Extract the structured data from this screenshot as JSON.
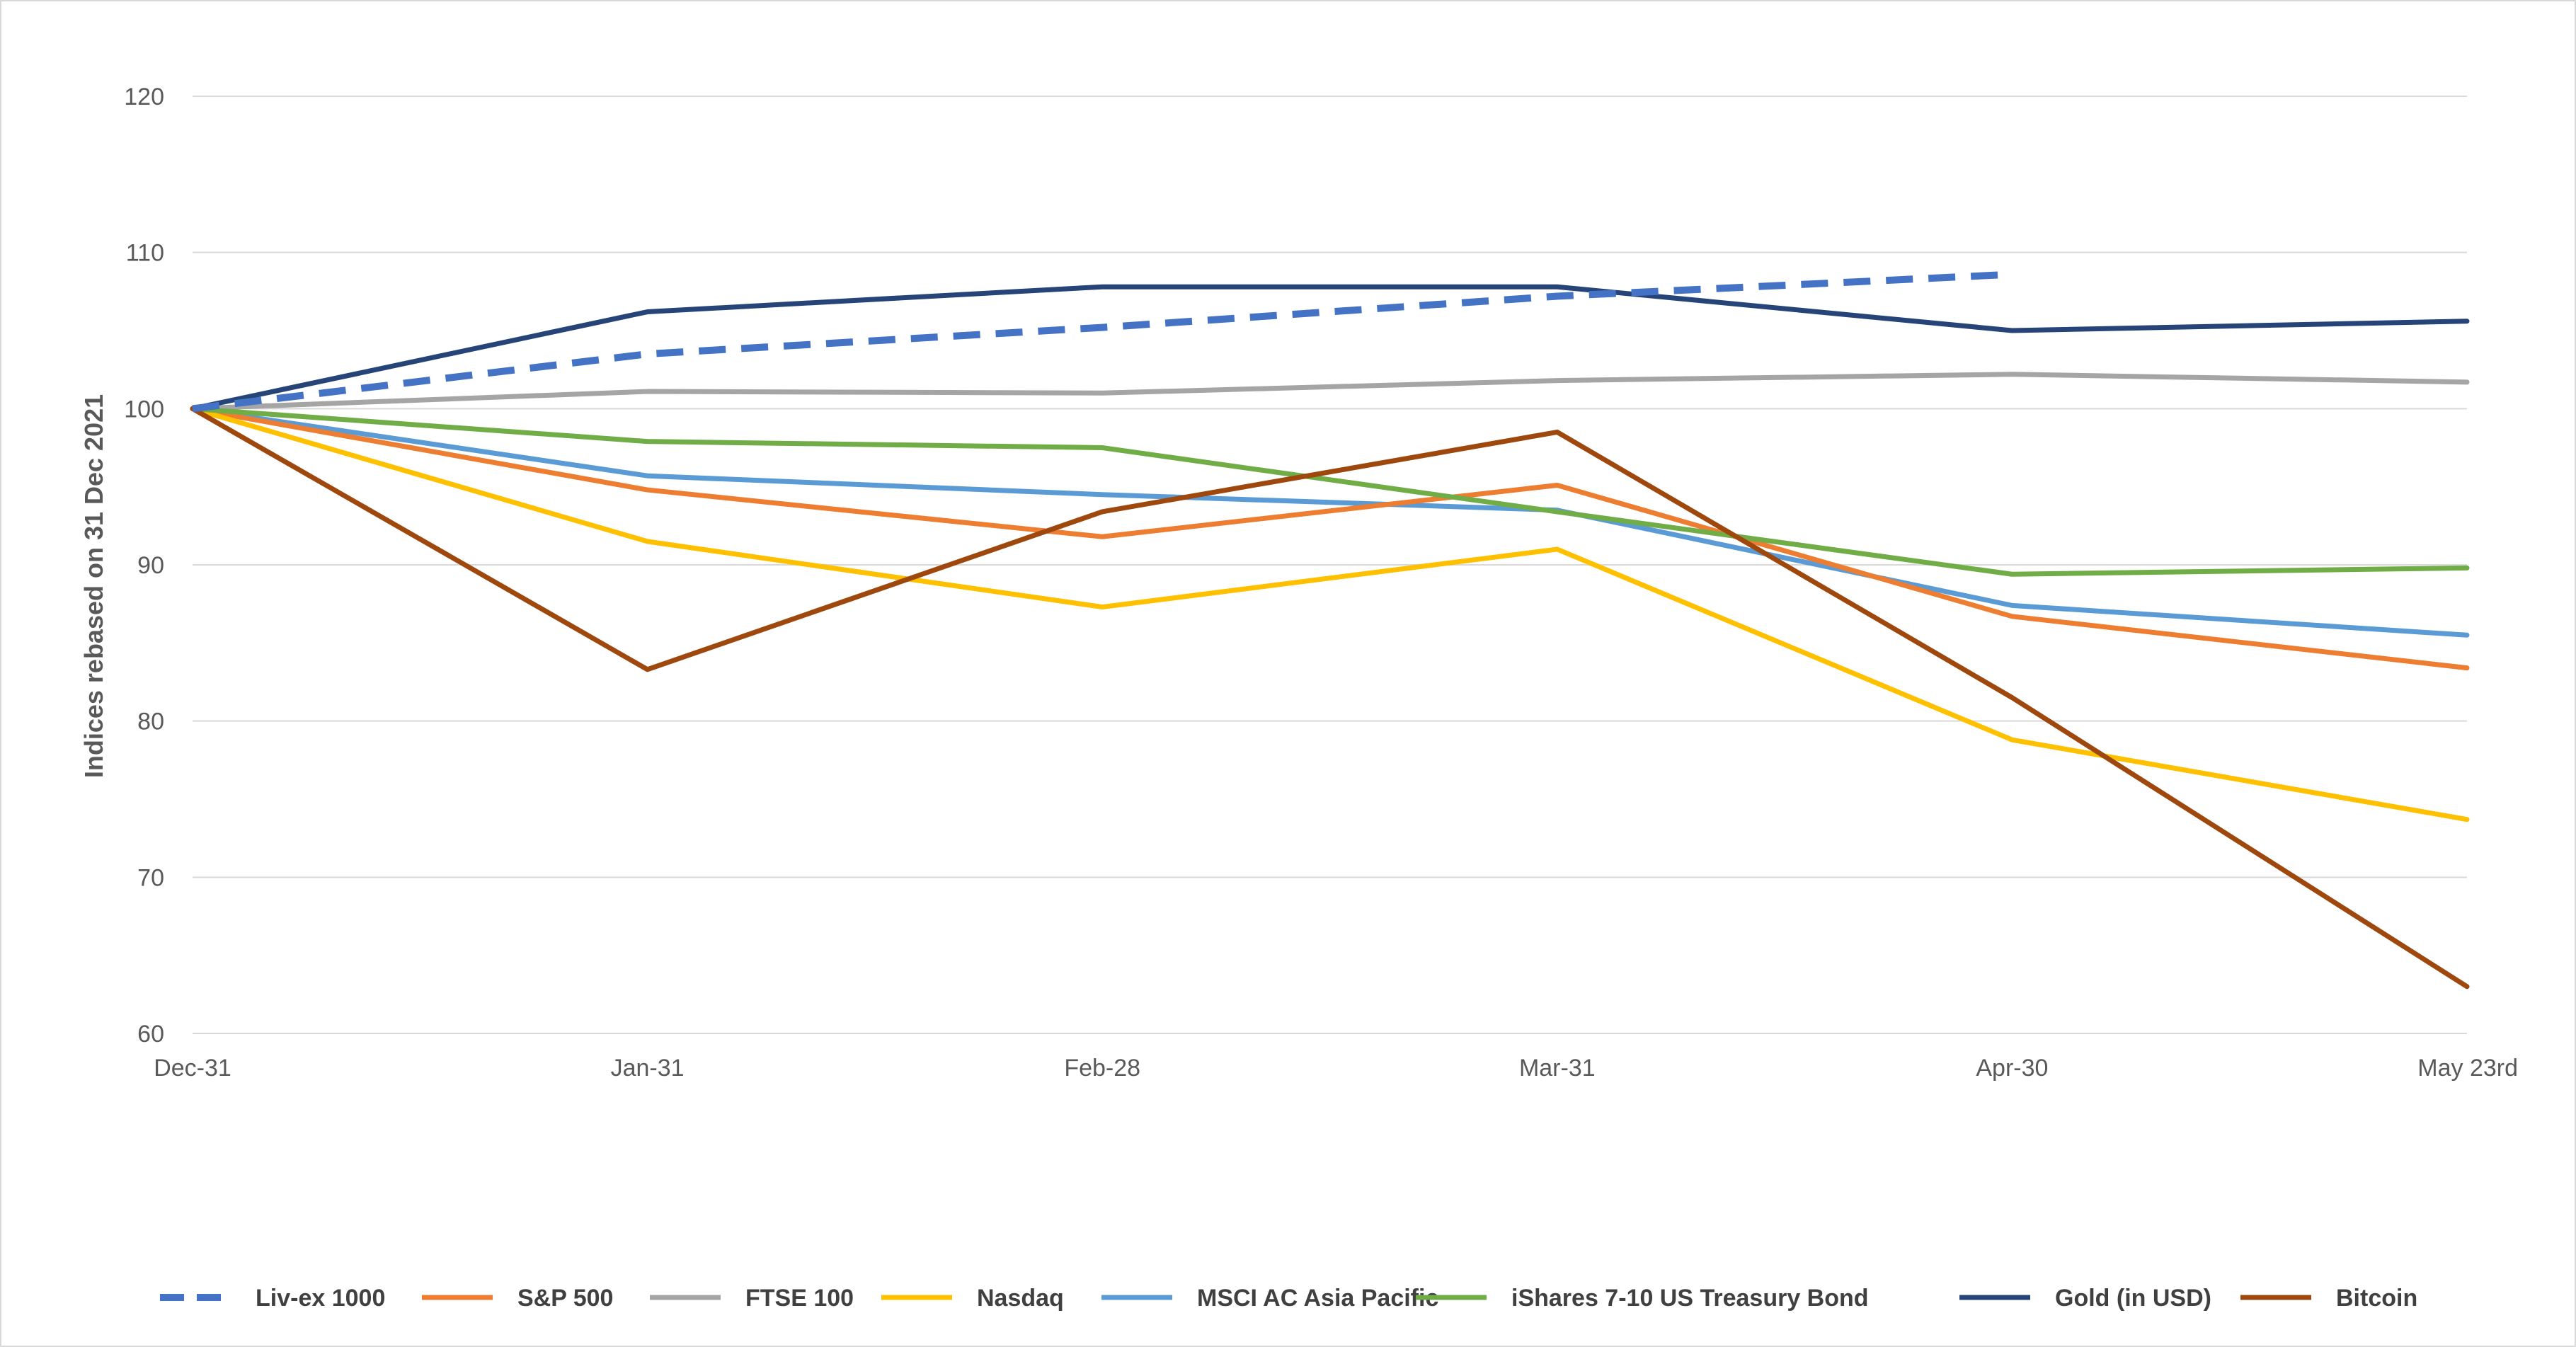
{
  "chart_data": {
    "type": "line",
    "title": "",
    "xlabel": "",
    "ylabel": "Indices rebased on 31 Dec 2021",
    "ylim": [
      60,
      120
    ],
    "yticks": [
      60,
      70,
      80,
      90,
      100,
      110,
      120
    ],
    "categories": [
      "Dec-31",
      "Jan-31",
      "Feb-28",
      "Mar-31",
      "Apr-30",
      "May 23rd"
    ],
    "grid": "horizontal",
    "legend_position": "bottom",
    "series": [
      {
        "name": "Liv-ex 1000",
        "color": "#4472c4",
        "dashed": true,
        "values": [
          100,
          103.5,
          105.2,
          107.2,
          108.6,
          null
        ]
      },
      {
        "name": "S&P 500",
        "color": "#ed7d31",
        "dashed": false,
        "values": [
          100,
          94.8,
          91.8,
          95.1,
          86.7,
          83.4
        ]
      },
      {
        "name": "FTSE 100",
        "color": "#a5a5a5",
        "dashed": false,
        "values": [
          100,
          101.1,
          101.0,
          101.8,
          102.2,
          101.7
        ]
      },
      {
        "name": "Nasdaq",
        "color": "#ffc000",
        "dashed": false,
        "values": [
          100,
          91.5,
          87.3,
          91.0,
          78.8,
          73.7
        ]
      },
      {
        "name": "MSCI AC Asia Pacific",
        "color": "#5b9bd5",
        "dashed": false,
        "values": [
          100,
          95.7,
          94.5,
          93.5,
          87.4,
          85.5
        ]
      },
      {
        "name": "iShares 7-10 US Treasury Bond",
        "color": "#70ad47",
        "dashed": false,
        "values": [
          100,
          97.9,
          97.5,
          93.4,
          89.4,
          89.8
        ]
      },
      {
        "name": "Gold (in USD)",
        "color": "#264478",
        "dashed": false,
        "values": [
          100,
          106.2,
          107.8,
          107.8,
          105.0,
          105.6
        ]
      },
      {
        "name": "Bitcoin",
        "color": "#9e480e",
        "dashed": false,
        "values": [
          100,
          83.3,
          93.4,
          98.5,
          81.5,
          63.0
        ]
      }
    ]
  }
}
